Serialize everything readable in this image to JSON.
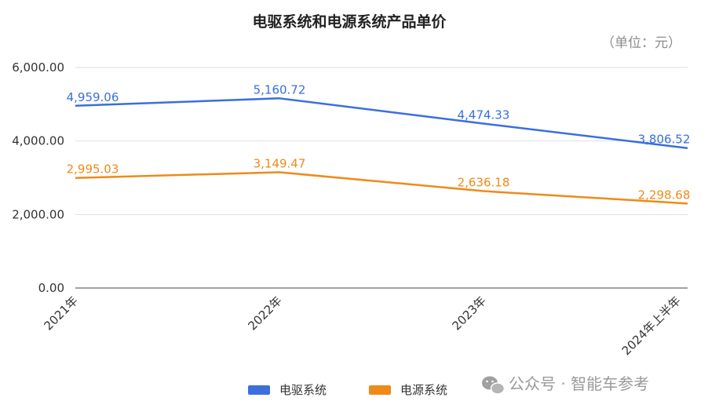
{
  "chart_data": {
    "type": "line",
    "title": "电驱系统和电源系统产品单价",
    "unit_note": "（单位：元）",
    "categories": [
      "2021年",
      "2022年",
      "2023年",
      "2024年上半年"
    ],
    "series": [
      {
        "name": "电驱系统",
        "color": "#3a6fdc",
        "values": [
          4959.06,
          5160.72,
          4474.33,
          3806.52
        ],
        "labels": [
          "4,959.06",
          "5,160.72",
          "4,474.33",
          "3,806.52"
        ]
      },
      {
        "name": "电源系统",
        "color": "#ef8a1a",
        "values": [
          2995.03,
          3149.47,
          2636.18,
          2298.68
        ],
        "labels": [
          "2,995.03",
          "3,149.47",
          "2,636.18",
          "2,298.68"
        ]
      }
    ],
    "yticks": [
      "0.00",
      "2,000.00",
      "4,000.00",
      "6,000.00"
    ],
    "ylim": [
      0,
      6000
    ],
    "grid": true,
    "legend_position": "bottom"
  },
  "watermark": "公众号 · 智能车参考"
}
